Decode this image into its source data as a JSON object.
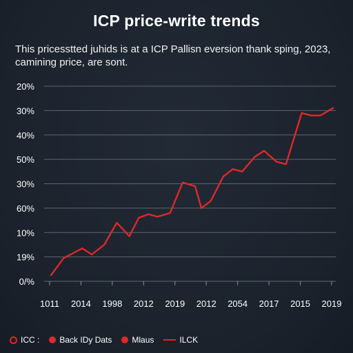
{
  "header": {
    "title": "ICP price-write trends",
    "subtitle_lines": [
      "This pricesstted juhids is at a ICP Pallisn eversion thank sping, 2023,",
      "camining price, are sont."
    ]
  },
  "chart_data": {
    "type": "line",
    "title": "ICP price-write trends",
    "subtitle": "This pricesstted juhids is at a ICP Pallisn eversion thank sping, 2023, camining price, are sont.",
    "xlabel": "",
    "ylabel": "",
    "y_tick_labels": [
      "20%",
      "30%",
      "40%",
      "50%",
      "30%",
      "60%",
      "10%",
      "19%",
      "0/%"
    ],
    "x_tick_labels": [
      "1011",
      "2014",
      "1998",
      "2012",
      "2019",
      "2012",
      "2054",
      "2017",
      "2015",
      "2019"
    ],
    "ylim": [
      0,
      8
    ],
    "xlim": [
      0,
      9
    ],
    "grid": true,
    "color": "#e02828",
    "series": [
      {
        "name": "ILCK",
        "x": [
          0,
          0.4,
          1,
          1.3,
          1.7,
          2.1,
          2.5,
          2.8,
          3.1,
          3.4,
          3.8,
          4.2,
          4.6,
          4.8,
          5.1,
          5.5,
          5.8,
          6.1,
          6.5,
          6.8,
          7.2,
          7.5,
          8.0,
          8.3,
          8.6,
          9.0
        ],
        "values": [
          0.25,
          0.95,
          1.35,
          1.1,
          1.5,
          2.4,
          1.85,
          2.6,
          2.75,
          2.65,
          2.8,
          4.05,
          3.9,
          3.0,
          3.3,
          4.3,
          4.6,
          4.5,
          5.1,
          5.35,
          4.9,
          4.8,
          6.9,
          6.8,
          6.8,
          7.1
        ]
      }
    ],
    "legend": {
      "placement": "bottom-left",
      "entries": [
        {
          "label": "ICC :",
          "marker": "ring"
        },
        {
          "label": "Back IDy Dats",
          "marker": "dot"
        },
        {
          "label": "Mlaus",
          "marker": "dot"
        },
        {
          "label": "ILCK",
          "marker": "line"
        }
      ]
    }
  }
}
